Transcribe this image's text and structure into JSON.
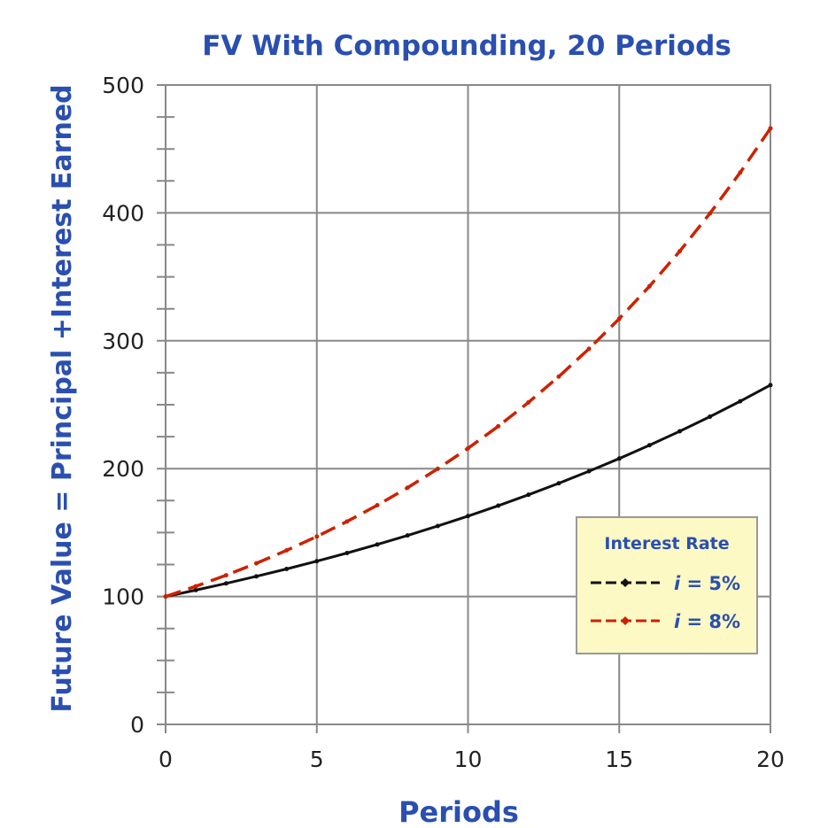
{
  "chart_data": {
    "type": "line",
    "title": "FV  With Compounding, 20 Periods",
    "xlabel": "Periods",
    "ylabel": "Future Value = Principal +Interest Earned",
    "xlim": [
      0,
      20
    ],
    "ylim": [
      0,
      500
    ],
    "xticks": [
      0,
      5,
      10,
      15,
      20
    ],
    "yticks": [
      0,
      100,
      200,
      300,
      400,
      500
    ],
    "grid": true,
    "legend": {
      "title": "Interest Rate",
      "placement": "bottom-right"
    },
    "x": [
      0,
      1,
      2,
      3,
      4,
      5,
      6,
      7,
      8,
      9,
      10,
      11,
      12,
      13,
      14,
      15,
      16,
      17,
      18,
      19,
      20
    ],
    "series": [
      {
        "name": "i = 5%",
        "italic_prefix": "i",
        "suffix": " = 5%",
        "color": "#111111",
        "dashed": false,
        "values": [
          100,
          105,
          110.25,
          115.76,
          121.55,
          127.63,
          134.01,
          140.71,
          147.75,
          155.13,
          162.89,
          171.03,
          179.59,
          188.56,
          197.99,
          207.89,
          218.29,
          229.2,
          240.66,
          252.7,
          265.33
        ]
      },
      {
        "name": "i = 8%",
        "italic_prefix": "i",
        "suffix": " = 8%",
        "color": "#cc2200",
        "dashed": true,
        "values": [
          100,
          108,
          116.64,
          125.97,
          136.05,
          146.93,
          158.69,
          171.38,
          185.09,
          199.9,
          215.89,
          233.16,
          251.82,
          271.96,
          293.72,
          317.22,
          342.59,
          370.0,
          399.6,
          431.57,
          466.1
        ]
      }
    ]
  }
}
